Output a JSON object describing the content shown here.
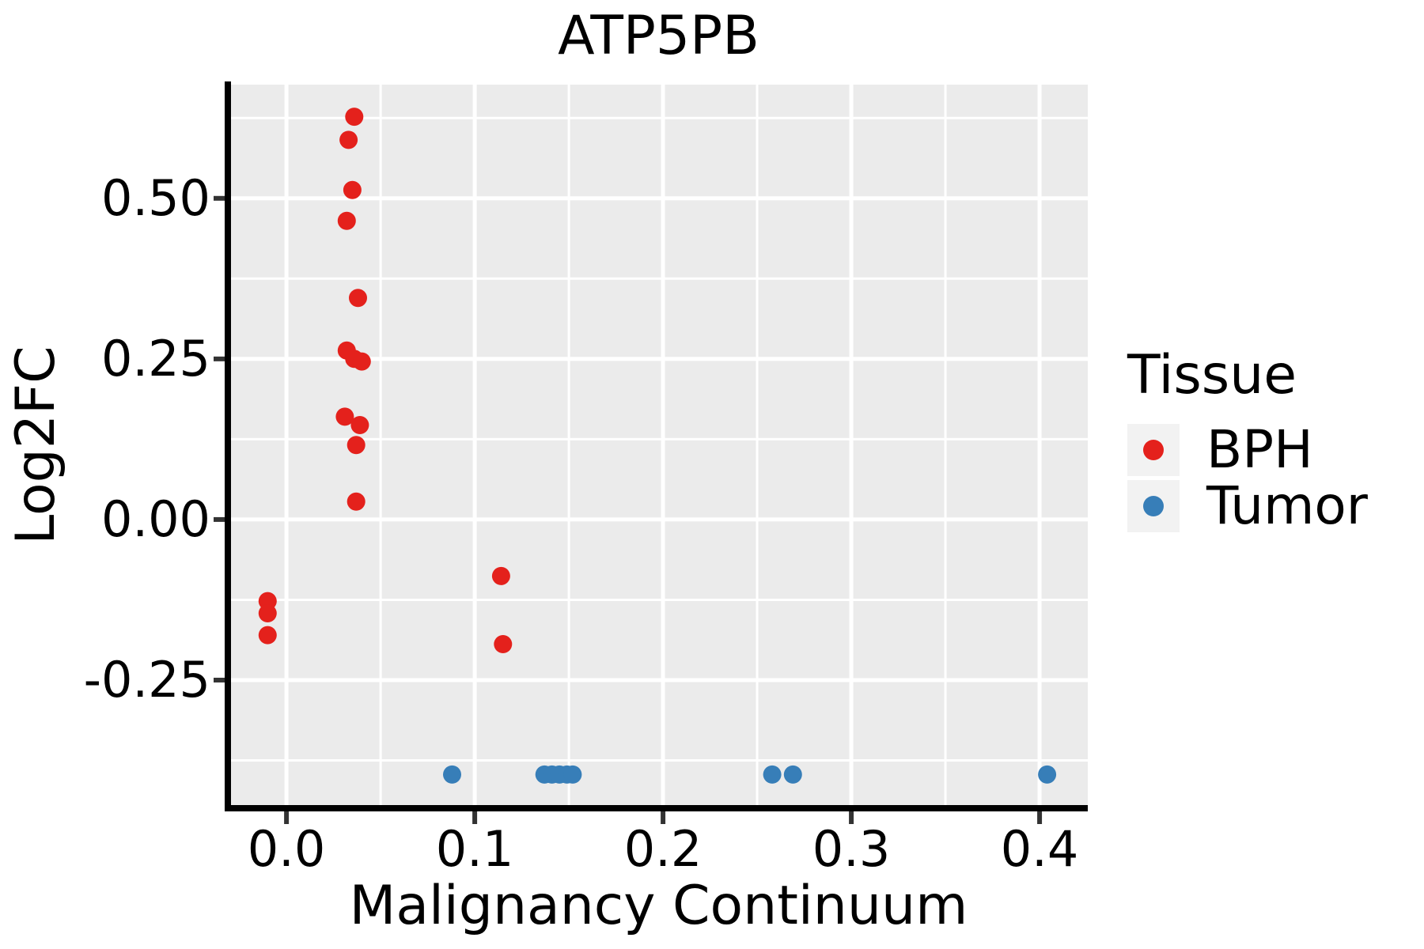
{
  "title": "ATP5PB",
  "chart_data": {
    "type": "scatter",
    "title": "ATP5PB",
    "xlabel": "Malignancy Continuum",
    "ylabel": "Log2FC",
    "xlim": [
      -0.0303,
      0.4256
    ],
    "ylim": [
      -0.447,
      0.677
    ],
    "x_ticks": [
      0.0,
      0.1,
      0.2,
      0.3,
      0.4
    ],
    "x_tick_labels": [
      "0.0",
      "0.1",
      "0.2",
      "0.3",
      "0.4"
    ],
    "y_ticks": [
      0.5,
      0.25,
      0.0,
      -0.25
    ],
    "y_tick_labels": [
      "0.50",
      "0.25",
      "0.00",
      "-0.25"
    ],
    "x_minor_ticks": [
      0.05,
      0.15,
      0.25,
      0.35
    ],
    "y_minor_ticks": [
      0.625,
      0.375,
      0.125,
      -0.125,
      -0.375
    ],
    "grid": true,
    "legend_position": "right",
    "panel_bg": "#ebebeb",
    "grid_color": "#ffffff",
    "axis_line_color": "#000000",
    "tick_mark_color": "#333333",
    "series": [
      {
        "name": "BPH",
        "color": "#e4211c",
        "points": [
          [
            0.036,
            0.627
          ],
          [
            0.033,
            0.591
          ],
          [
            0.035,
            0.513
          ],
          [
            0.032,
            0.465
          ],
          [
            0.038,
            0.345
          ],
          [
            0.032,
            0.263
          ],
          [
            0.036,
            0.25
          ],
          [
            0.04,
            0.246
          ],
          [
            0.031,
            0.16
          ],
          [
            0.039,
            0.147
          ],
          [
            0.037,
            0.116
          ],
          [
            0.037,
            0.028
          ],
          [
            -0.01,
            -0.127
          ],
          [
            -0.01,
            -0.146
          ],
          [
            -0.01,
            -0.18
          ],
          [
            0.114,
            -0.088
          ],
          [
            0.115,
            -0.194
          ]
        ]
      },
      {
        "name": "Tumor",
        "color": "#377eb8",
        "points": [
          [
            0.088,
            -0.397
          ],
          [
            0.137,
            -0.397
          ],
          [
            0.141,
            -0.397
          ],
          [
            0.145,
            -0.397
          ],
          [
            0.149,
            -0.397
          ],
          [
            0.152,
            -0.397
          ],
          [
            0.258,
            -0.397
          ],
          [
            0.269,
            -0.397
          ],
          [
            0.404,
            -0.397
          ]
        ]
      }
    ]
  },
  "legend": {
    "title": "Tissue",
    "items": [
      {
        "label": "BPH",
        "color": "#e4211c"
      },
      {
        "label": "Tumor",
        "color": "#377eb8"
      }
    ]
  }
}
